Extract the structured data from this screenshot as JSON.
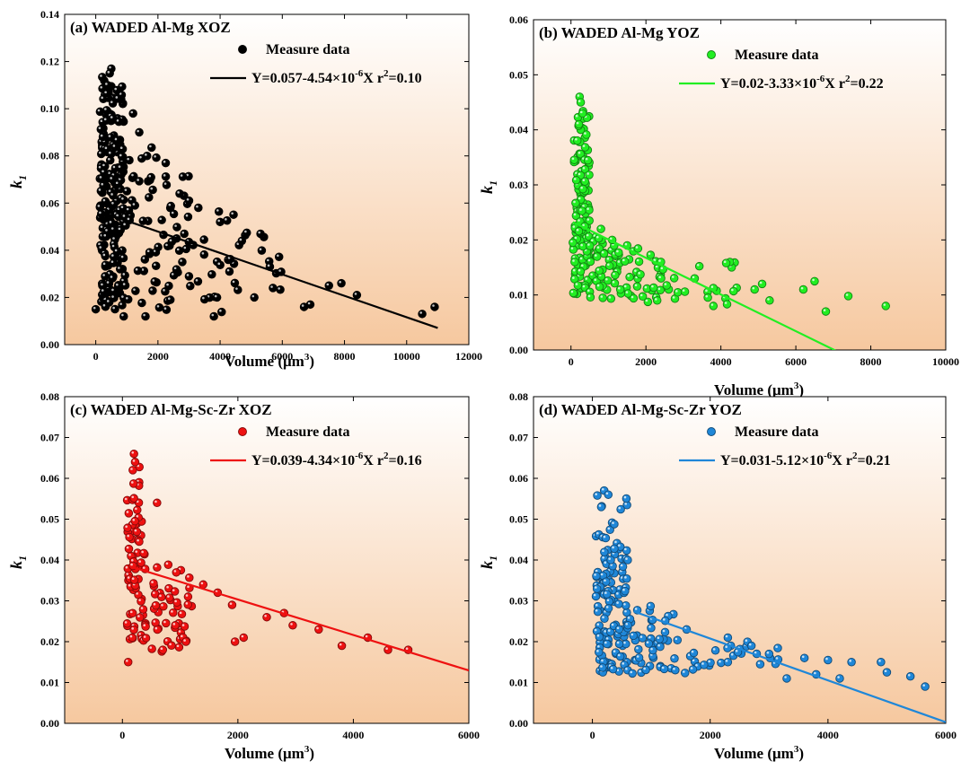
{
  "chart_data": [
    {
      "type": "scatter",
      "title": "(a) WADED Al-Mg XOZ",
      "xlabel": "Volume (μm³)",
      "ylabel": "k₁",
      "xlim": [
        -1000,
        12000
      ],
      "ylim": [
        0,
        0.14
      ],
      "xticks": [
        0,
        2000,
        4000,
        6000,
        8000,
        10000,
        12000
      ],
      "yticks": [
        0.0,
        0.02,
        0.04,
        0.06,
        0.08,
        0.1,
        0.12,
        0.14
      ],
      "tick_labels_x": [
        "0",
        "2000",
        "4000",
        "6000",
        "8000",
        "10000",
        "12000"
      ],
      "tick_labels_y": [
        "0.00",
        "0.02",
        "0.04",
        "0.06",
        "0.08",
        "0.10",
        "0.12",
        "0.14"
      ],
      "color": "#000000",
      "legend": {
        "placement": "top-right",
        "marker_label": "Measure data",
        "line_label": "Y=0.057-4.54×10⁻⁶X r²=0.10"
      },
      "fit": {
        "intercept": 0.057,
        "slope": -4.54e-06,
        "x_range": [
          550,
          11000
        ]
      },
      "clusters": [
        [
          130,
          900,
          0.015,
          0.117,
          200
        ],
        [
          900,
          3000,
          0.012,
          0.085,
          70
        ],
        [
          3000,
          6000,
          0.012,
          0.06,
          30
        ]
      ],
      "points": [
        [
          0,
          0.015
        ],
        [
          500,
          0.117
        ],
        [
          450,
          0.115
        ],
        [
          380,
          0.11
        ],
        [
          1200,
          0.098
        ],
        [
          1400,
          0.09
        ],
        [
          1650,
          0.08
        ],
        [
          2250,
          0.077
        ],
        [
          3000,
          0.061
        ],
        [
          3300,
          0.058
        ],
        [
          3800,
          0.012
        ],
        [
          4700,
          0.044
        ],
        [
          5300,
          0.047
        ],
        [
          5600,
          0.033
        ],
        [
          5700,
          0.024
        ],
        [
          6700,
          0.016
        ],
        [
          6900,
          0.017
        ],
        [
          7500,
          0.025
        ],
        [
          7900,
          0.026
        ],
        [
          8400,
          0.021
        ],
        [
          10500,
          0.013
        ],
        [
          10900,
          0.016
        ],
        [
          5100,
          0.02
        ],
        [
          4000,
          0.052
        ],
        [
          3900,
          0.02
        ],
        [
          4300,
          0.031
        ],
        [
          2600,
          0.045
        ],
        [
          2400,
          0.019
        ],
        [
          900,
          0.012
        ],
        [
          1600,
          0.012
        ]
      ]
    },
    {
      "type": "scatter",
      "title": "(b) WADED Al-Mg YOZ",
      "xlabel": "Volume (μm³)",
      "ylabel": "k₁",
      "xlim": [
        -1000,
        10000
      ],
      "ylim": [
        0,
        0.06
      ],
      "xticks": [
        0,
        2000,
        4000,
        6000,
        8000,
        10000
      ],
      "yticks": [
        0.0,
        0.01,
        0.02,
        0.03,
        0.04,
        0.05,
        0.06
      ],
      "tick_labels_x": [
        "0",
        "2000",
        "4000",
        "6000",
        "8000",
        "10000"
      ],
      "tick_labels_y": [
        "0.00",
        "0.01",
        "0.02",
        "0.03",
        "0.04",
        "0.05",
        "0.06"
      ],
      "color": "#22ee22",
      "legend": {
        "placement": "top-right",
        "marker_label": "Measure data",
        "line_label": "Y=0.02-3.33×10⁻⁶X r²=0.22"
      },
      "fit": {
        "intercept": 0.0234,
        "slope": -3.33e-06,
        "x_range": [
          50,
          7050
        ]
      },
      "clusters": [
        [
          60,
          500,
          0.01,
          0.046,
          130
        ],
        [
          500,
          1800,
          0.009,
          0.022,
          60
        ],
        [
          1800,
          4500,
          0.008,
          0.018,
          35
        ]
      ],
      "points": [
        [
          230,
          0.046
        ],
        [
          260,
          0.045
        ],
        [
          310,
          0.043
        ],
        [
          210,
          0.041
        ],
        [
          800,
          0.022
        ],
        [
          1100,
          0.02
        ],
        [
          1500,
          0.019
        ],
        [
          2400,
          0.016
        ],
        [
          3300,
          0.013
        ],
        [
          3800,
          0.008
        ],
        [
          4900,
          0.011
        ],
        [
          5100,
          0.012
        ],
        [
          5300,
          0.009
        ],
        [
          6200,
          0.011
        ],
        [
          6500,
          0.0125
        ],
        [
          6800,
          0.007
        ],
        [
          7400,
          0.0098
        ],
        [
          8400,
          0.008
        ],
        [
          100,
          0.016
        ],
        [
          50,
          0.0195
        ],
        [
          2300,
          0.009
        ]
      ]
    },
    {
      "type": "scatter",
      "title": "(c) WADED Al-Mg-Sc-Zr XOZ",
      "xlabel": "Volume (μm³)",
      "ylabel": "k₁",
      "xlim": [
        -1000,
        6000
      ],
      "ylim": [
        0,
        0.08
      ],
      "xticks": [
        0,
        2000,
        4000,
        6000
      ],
      "yticks": [
        0.0,
        0.01,
        0.02,
        0.03,
        0.04,
        0.05,
        0.06,
        0.07,
        0.08
      ],
      "tick_labels_x": [
        "0",
        "2000",
        "4000",
        "6000"
      ],
      "tick_labels_y": [
        "0.00",
        "0.01",
        "0.02",
        "0.03",
        "0.04",
        "0.05",
        "0.06",
        "0.07",
        "0.08"
      ],
      "color": "#ee1111",
      "legend": {
        "placement": "top-right",
        "marker_label": "Measure data",
        "line_label": "Y=0.039-4.34×10⁻⁶X r²=0.16"
      },
      "fit": {
        "intercept": 0.039,
        "slope": -4.34e-06,
        "x_range": [
          200,
          6000
        ]
      },
      "clusters": [
        [
          80,
          400,
          0.02,
          0.066,
          70
        ],
        [
          400,
          1200,
          0.017,
          0.04,
          45
        ]
      ],
      "points": [
        [
          200,
          0.066
        ],
        [
          220,
          0.064
        ],
        [
          180,
          0.062
        ],
        [
          100,
          0.015
        ],
        [
          600,
          0.054
        ],
        [
          1400,
          0.034
        ],
        [
          1650,
          0.032
        ],
        [
          1900,
          0.029
        ],
        [
          1950,
          0.02
        ],
        [
          2100,
          0.021
        ],
        [
          2500,
          0.026
        ],
        [
          2800,
          0.027
        ],
        [
          2950,
          0.024
        ],
        [
          3400,
          0.023
        ],
        [
          3800,
          0.019
        ],
        [
          4250,
          0.021
        ],
        [
          4600,
          0.018
        ],
        [
          4950,
          0.018
        ],
        [
          700,
          0.018
        ],
        [
          1100,
          0.02
        ]
      ]
    },
    {
      "type": "scatter",
      "title": "(d) WADED Al-Mg-Sc-Zr YOZ",
      "xlabel": "Volume (μm³)",
      "ylabel": "k₁",
      "xlim": [
        -1000,
        6000
      ],
      "ylim": [
        0,
        0.08
      ],
      "xticks": [
        0,
        2000,
        4000,
        6000
      ],
      "yticks": [
        0.0,
        0.01,
        0.02,
        0.03,
        0.04,
        0.05,
        0.06,
        0.07,
        0.08
      ],
      "tick_labels_x": [
        "0",
        "2000",
        "4000",
        "6000"
      ],
      "tick_labels_y": [
        "0.00",
        "0.01",
        "0.02",
        "0.03",
        "0.04",
        "0.05",
        "0.06",
        "0.07",
        "0.08"
      ],
      "color": "#1f87d8",
      "legend": {
        "placement": "top-right",
        "marker_label": "Measure data",
        "line_label": "Y=0.031-5.12×10⁻⁶X r²=0.21"
      },
      "fit": {
        "intercept": 0.031,
        "slope": -5.12e-06,
        "x_range": [
          700,
          6000
        ]
      },
      "clusters": [
        [
          60,
          600,
          0.012,
          0.057,
          130
        ],
        [
          600,
          1500,
          0.012,
          0.03,
          45
        ],
        [
          1500,
          3200,
          0.012,
          0.022,
          25
        ]
      ],
      "points": [
        [
          200,
          0.057
        ],
        [
          270,
          0.056
        ],
        [
          150,
          0.053
        ],
        [
          600,
          0.04
        ],
        [
          1600,
          0.023
        ],
        [
          2300,
          0.021
        ],
        [
          2700,
          0.019
        ],
        [
          3000,
          0.017
        ],
        [
          3300,
          0.011
        ],
        [
          3600,
          0.016
        ],
        [
          3800,
          0.012
        ],
        [
          4000,
          0.0155
        ],
        [
          4200,
          0.011
        ],
        [
          4400,
          0.015
        ],
        [
          4900,
          0.015
        ],
        [
          5000,
          0.0125
        ],
        [
          5400,
          0.0115
        ],
        [
          5650,
          0.009
        ],
        [
          2300,
          0.015
        ]
      ]
    }
  ]
}
